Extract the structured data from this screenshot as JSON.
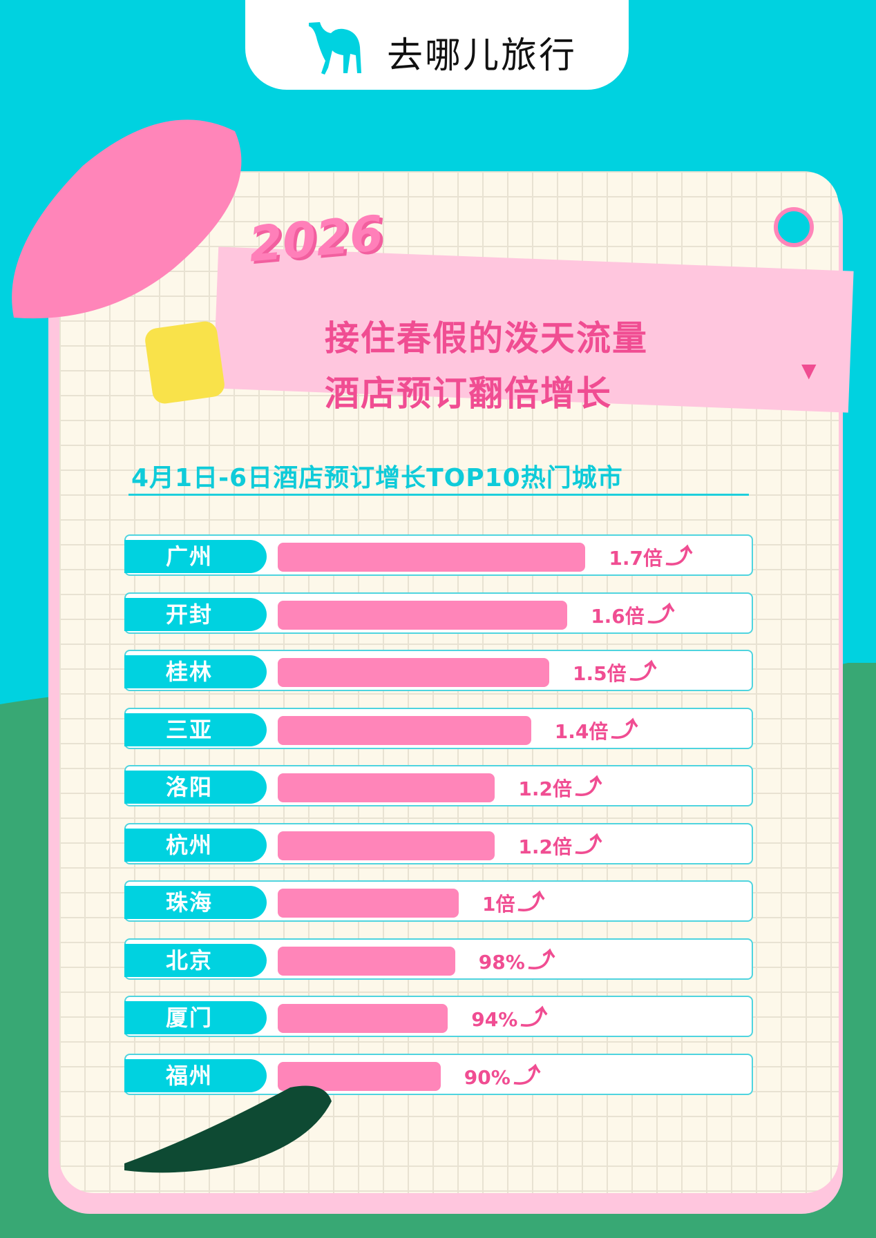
{
  "brand": {
    "logo_text": "去哪儿旅行",
    "logo_icon": "camel-icon"
  },
  "header": {
    "year": "2026",
    "headline_lines": [
      "接住春假的泼天流量",
      "酒店预订翻倍增长"
    ]
  },
  "colors": {
    "background": "#00d2e0",
    "bar": "#ff85b9",
    "label_pill": "#00d2e0",
    "value_text": "#f04d92"
  },
  "chart_data": {
    "type": "bar",
    "orientation": "horizontal",
    "title": "4月1日-6日酒店预订增长TOP10热门城市",
    "categories": [
      "广州",
      "开封",
      "桂林",
      "三亚",
      "洛阳",
      "杭州",
      "珠海",
      "北京",
      "厦门",
      "福州"
    ],
    "values": [
      1.7,
      1.6,
      1.5,
      1.4,
      1.2,
      1.2,
      1.0,
      0.98,
      0.94,
      0.9
    ],
    "value_labels": [
      "1.7倍",
      "1.6倍",
      "1.5倍",
      "1.4倍",
      "1.2倍",
      "1.2倍",
      "1倍",
      "98%",
      "94%",
      "90%"
    ],
    "unit": "growth multiple",
    "grid": false,
    "legend": "none"
  }
}
